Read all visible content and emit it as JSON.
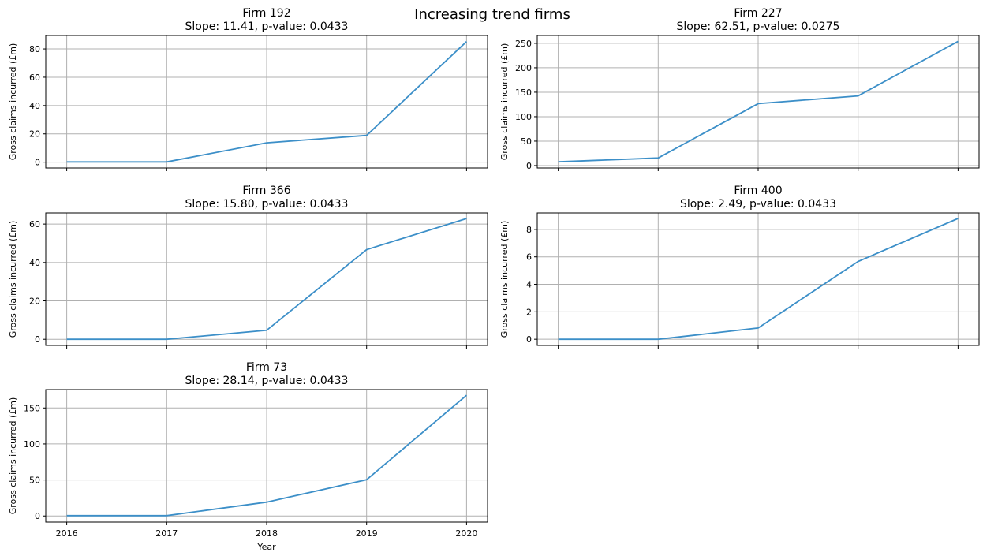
{
  "figure": {
    "suptitle": "Increasing trend firms",
    "line_color": "#3c8fc8",
    "grid_color": "#b0b0b0"
  },
  "chart_data": [
    {
      "type": "line",
      "title": "Firm 192",
      "subtitle": "Slope: 11.41, p-value: 0.0433",
      "xlabel": "",
      "ylabel": "Gross claims incurred (£m)",
      "x": [
        2016,
        2017,
        2018,
        2019,
        2020
      ],
      "series": [
        {
          "values": [
            0.2,
            0.2,
            13.7,
            18.9,
            85.2
          ]
        }
      ],
      "yticks": [
        0,
        20,
        40,
        60,
        80
      ],
      "ytick_labels": [
        "0",
        "20",
        "40",
        "60",
        "80"
      ],
      "ylim": [
        -4.1,
        89.5
      ],
      "xlim": [
        2015.79,
        2020.21
      ],
      "show_xtick_labels": false,
      "grid": true
    },
    {
      "type": "line",
      "title": "Firm 227",
      "subtitle": "Slope: 62.51, p-value: 0.0275",
      "xlabel": "",
      "ylabel": "Gross claims incurred (£m)",
      "x": [
        2016,
        2017,
        2018,
        2019,
        2020
      ],
      "series": [
        {
          "values": [
            7.7,
            15.6,
            126.7,
            142.5,
            254.0
          ]
        }
      ],
      "yticks": [
        0,
        50,
        100,
        150,
        200,
        250
      ],
      "ytick_labels": [
        "0",
        "50",
        "100",
        "150",
        "200",
        "250"
      ],
      "ylim": [
        -4.9,
        266.0
      ],
      "xlim": [
        2015.79,
        2020.21
      ],
      "show_xtick_labels": false,
      "grid": true
    },
    {
      "type": "line",
      "title": "Firm 366",
      "subtitle": "Slope: 15.80, p-value: 0.0433",
      "xlabel": "",
      "ylabel": "Gross claims incurred (£m)",
      "x": [
        2016,
        2017,
        2018,
        2019,
        2020
      ],
      "series": [
        {
          "values": [
            0.0,
            0.0,
            4.7,
            46.7,
            62.9
          ]
        }
      ],
      "yticks": [
        0,
        20,
        40,
        60
      ],
      "ytick_labels": [
        "0",
        "20",
        "40",
        "60"
      ],
      "ylim": [
        -3.2,
        65.8
      ],
      "xlim": [
        2015.79,
        2020.21
      ],
      "show_xtick_labels": false,
      "grid": true
    },
    {
      "type": "line",
      "title": "Firm 400",
      "subtitle": "Slope: 2.49, p-value: 0.0433",
      "xlabel": "",
      "ylabel": "Gross claims incurred (£m)",
      "x": [
        2016,
        2017,
        2018,
        2019,
        2020
      ],
      "series": [
        {
          "values": [
            0.0,
            0.0,
            0.82,
            5.67,
            8.8
          ]
        }
      ],
      "yticks": [
        0,
        2,
        4,
        6,
        8
      ],
      "ytick_labels": [
        "0",
        "2",
        "4",
        "6",
        "8"
      ],
      "ylim": [
        -0.45,
        9.2
      ],
      "xlim": [
        2015.79,
        2020.21
      ],
      "show_xtick_labels": false,
      "grid": true
    },
    {
      "type": "line",
      "title": "Firm 73",
      "subtitle": "Slope: 28.14, p-value: 0.0433",
      "xlabel": "Year",
      "ylabel": "Gross claims incurred (£m)",
      "x": [
        2016,
        2017,
        2018,
        2019,
        2020
      ],
      "series": [
        {
          "values": [
            0.5,
            0.5,
            19.2,
            50.3,
            167.6
          ]
        }
      ],
      "yticks": [
        0,
        50,
        100,
        150
      ],
      "ytick_labels": [
        "0",
        "50",
        "100",
        "150"
      ],
      "ylim": [
        -8.5,
        175.5
      ],
      "xlim": [
        2015.79,
        2020.21
      ],
      "xtick_labels": [
        "2016",
        "2017",
        "2018",
        "2019",
        "2020"
      ],
      "show_xtick_labels": true,
      "grid": true
    }
  ]
}
